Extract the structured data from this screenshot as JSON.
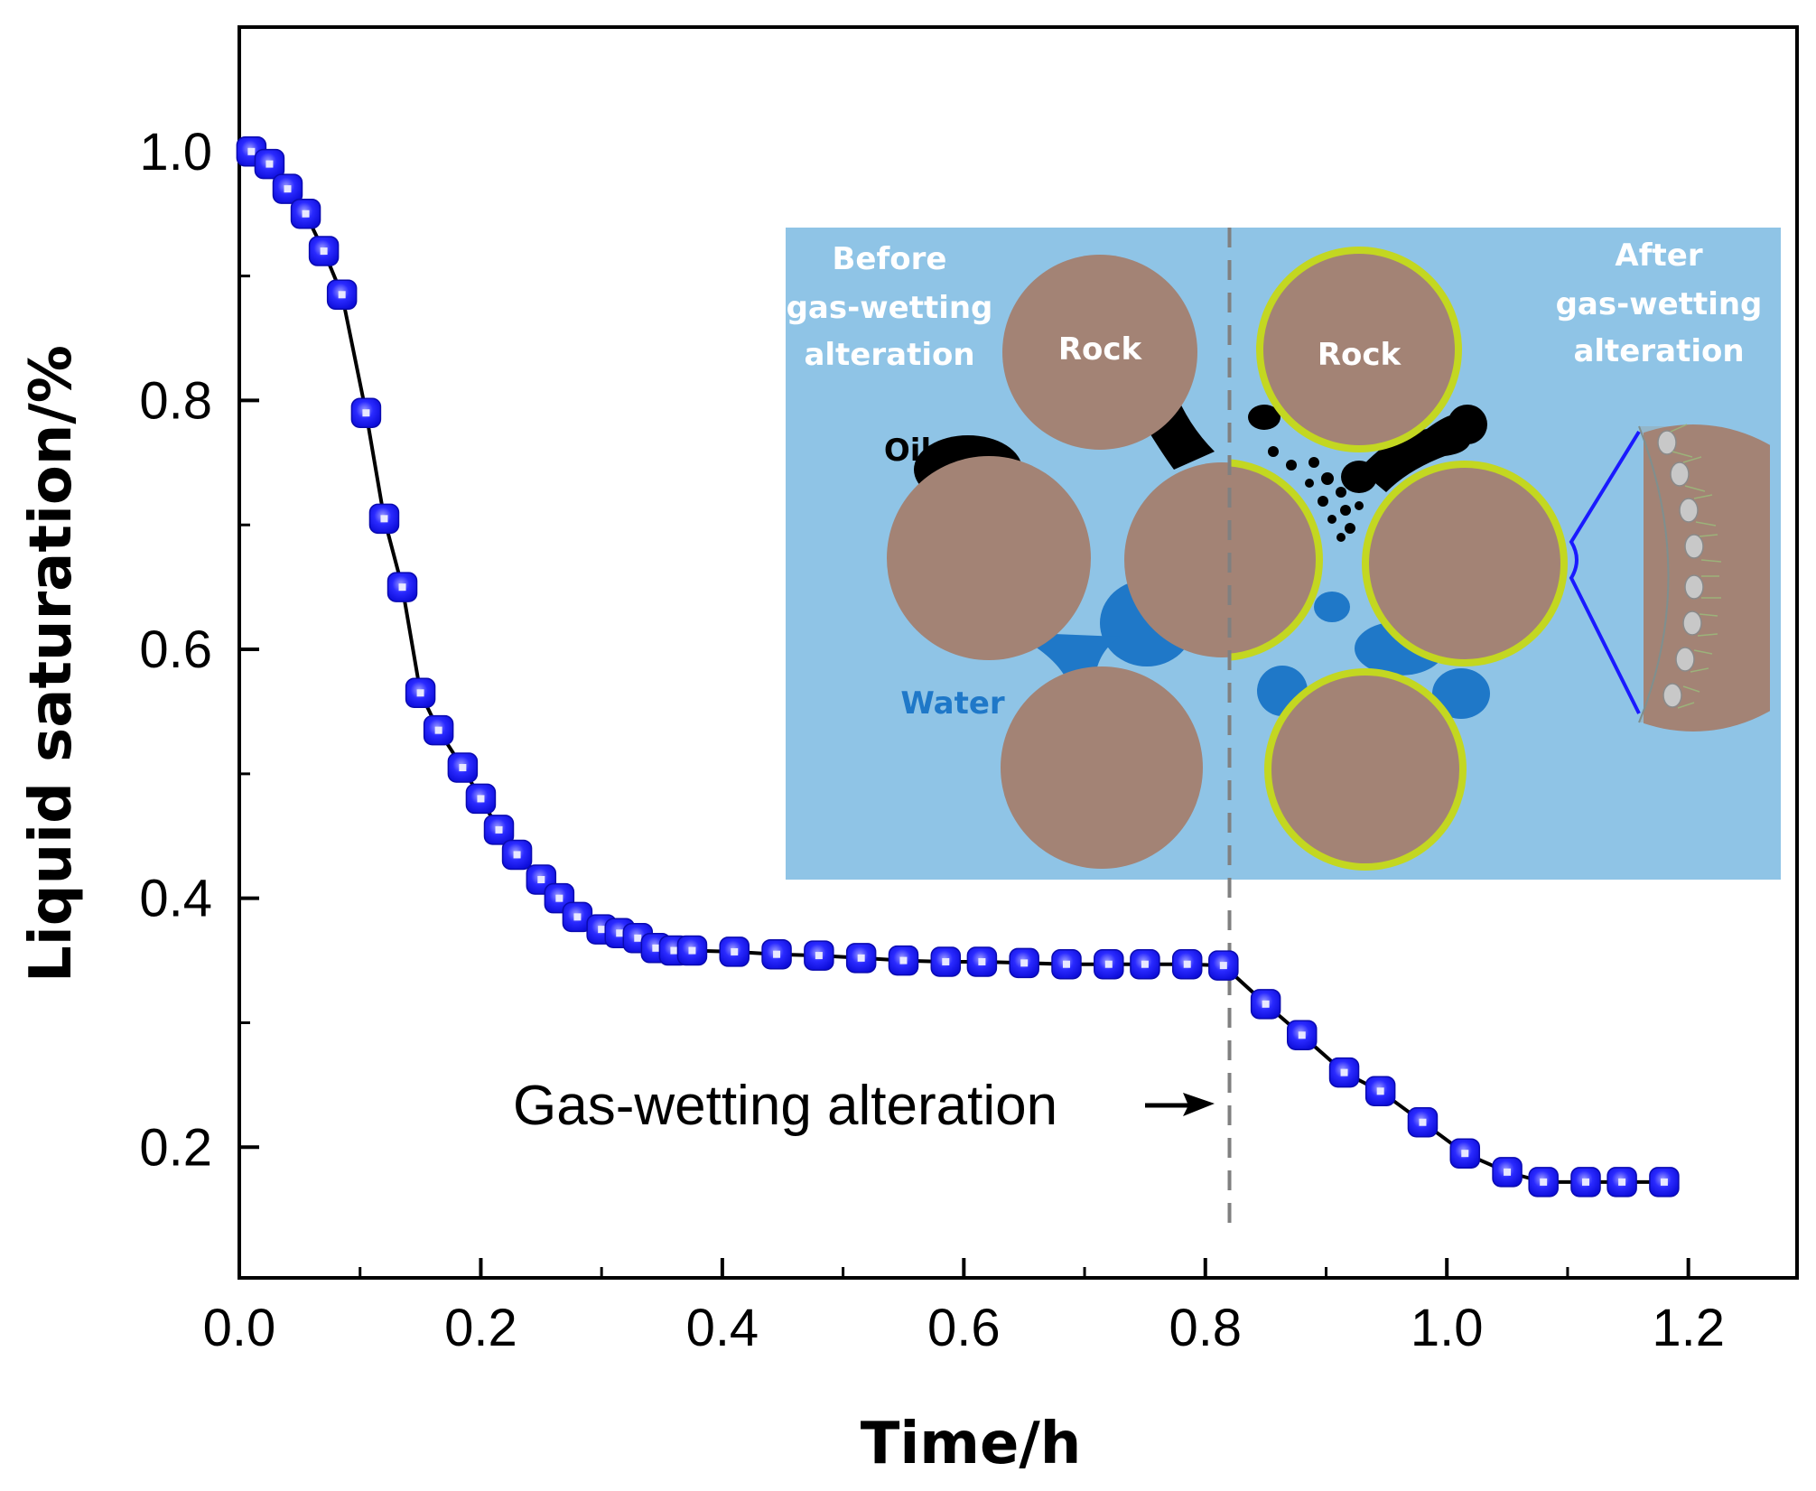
{
  "chart_data": {
    "type": "scatter",
    "title": "",
    "xlabel": "Time/h",
    "ylabel": "Liquid saturation/%",
    "xlim": [
      0.0,
      1.29
    ],
    "ylim": [
      0.095,
      1.1
    ],
    "xticks": [
      "0.0",
      "0.2",
      "0.4",
      "0.6",
      "0.8",
      "1.0",
      "1.2"
    ],
    "yticks": [
      "0.2",
      "0.4",
      "0.6",
      "0.8",
      "1.0"
    ],
    "series": [
      {
        "name": "Liquid saturation",
        "color": "#1a1aff",
        "x": [
          0.01,
          0.025,
          0.04,
          0.055,
          0.07,
          0.085,
          0.105,
          0.12,
          0.135,
          0.15,
          0.165,
          0.185,
          0.2,
          0.215,
          0.23,
          0.25,
          0.265,
          0.28,
          0.3,
          0.315,
          0.33,
          0.345,
          0.36,
          0.375,
          0.41,
          0.445,
          0.48,
          0.515,
          0.55,
          0.585,
          0.615,
          0.65,
          0.685,
          0.72,
          0.75,
          0.785,
          0.815,
          0.85,
          0.88,
          0.915,
          0.945,
          0.98,
          1.015,
          1.05,
          1.08,
          1.115,
          1.145,
          1.18
        ],
        "values": [
          1.0,
          0.99,
          0.97,
          0.95,
          0.92,
          0.885,
          0.79,
          0.705,
          0.65,
          0.565,
          0.535,
          0.505,
          0.48,
          0.455,
          0.435,
          0.415,
          0.4,
          0.385,
          0.375,
          0.372,
          0.368,
          0.36,
          0.358,
          0.358,
          0.357,
          0.355,
          0.354,
          0.352,
          0.35,
          0.349,
          0.349,
          0.348,
          0.347,
          0.347,
          0.347,
          0.347,
          0.346,
          0.315,
          0.29,
          0.26,
          0.245,
          0.22,
          0.195,
          0.18,
          0.172,
          0.172,
          0.172,
          0.172
        ]
      }
    ],
    "vline_x": 0.82,
    "annotation": "Gas-wetting alteration",
    "grid": false,
    "legend": "none"
  },
  "inset": {
    "before_label": [
      "Before",
      "gas-wetting",
      "alteration"
    ],
    "after_label": [
      "After",
      "gas-wetting",
      "alteration"
    ],
    "rock_label_left": "Rock",
    "rock_label_right": "Rock",
    "oil_label": "Oil",
    "water_label": "Water",
    "colors": {
      "background": "#8fc4e6",
      "rock": "#a38375",
      "rim": "#c3d721",
      "water": "#1f78c8",
      "oil": "#000000",
      "text_light": "#ffffff",
      "text_water": "#1f78c8"
    }
  }
}
